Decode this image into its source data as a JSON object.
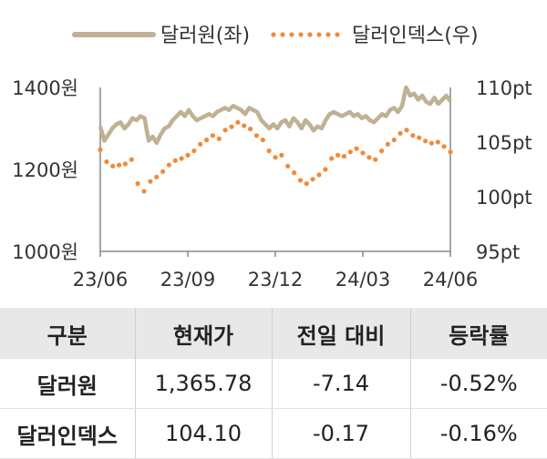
{
  "chart_data": {
    "type": "line",
    "series": [
      {
        "name": "달러원(좌)",
        "axis": "left",
        "color": "#bfb193",
        "style": "solid",
        "values": [
          1305,
          1270,
          1285,
          1300,
          1310,
          1315,
          1300,
          1310,
          1325,
          1320,
          1330,
          1325,
          1270,
          1280,
          1265,
          1285,
          1300,
          1305,
          1320,
          1330,
          1340,
          1330,
          1345,
          1330,
          1320,
          1325,
          1330,
          1335,
          1330,
          1340,
          1345,
          1350,
          1345,
          1355,
          1350,
          1345,
          1335,
          1350,
          1345,
          1340,
          1320,
          1310,
          1300,
          1310,
          1300,
          1315,
          1320,
          1305,
          1325,
          1315,
          1300,
          1320,
          1310,
          1295,
          1305,
          1300,
          1320,
          1335,
          1340,
          1335,
          1330,
          1335,
          1340,
          1330,
          1335,
          1325,
          1330,
          1320,
          1315,
          1325,
          1335,
          1330,
          1345,
          1350,
          1340,
          1355,
          1400,
          1380,
          1385,
          1370,
          1380,
          1365,
          1360,
          1375,
          1360,
          1370,
          1380,
          1366
        ]
      },
      {
        "name": "달러인덱스(우)",
        "axis": "right",
        "color": "#f08a3a",
        "style": "dotted",
        "values": [
          104.3,
          103.2,
          102.8,
          102.9,
          103.0,
          103.4,
          101.2,
          100.5,
          101.4,
          101.8,
          102.3,
          102.9,
          103.3,
          103.5,
          103.8,
          104.2,
          104.8,
          105.2,
          105.6,
          105.3,
          106.1,
          106.4,
          106.8,
          106.5,
          106.2,
          105.6,
          105.2,
          104.2,
          103.6,
          103.8,
          102.8,
          102.2,
          101.5,
          101.2,
          101.6,
          102.0,
          102.5,
          103.5,
          103.8,
          103.7,
          104.1,
          104.4,
          104.0,
          103.6,
          103.4,
          104.2,
          104.8,
          105.2,
          105.8,
          106.1,
          105.6,
          105.4,
          105.1,
          104.9,
          105.0,
          104.6,
          104.1
        ]
      }
    ],
    "x_ticks": [
      "23/06",
      "23/09",
      "23/12",
      "24/03",
      "24/06"
    ],
    "y_left": {
      "ticks": [
        "1000원",
        "1200원",
        "1400원"
      ],
      "ylim": [
        1000,
        1400
      ]
    },
    "y_right": {
      "ticks": [
        "95pt",
        "100pt",
        "105pt",
        "110pt"
      ],
      "ylim": [
        95,
        110
      ]
    },
    "legend_position": "top",
    "grid": false
  },
  "table": {
    "headers": [
      "구분",
      "현재가",
      "전일 대비",
      "등락률"
    ],
    "rows": [
      [
        "달러원",
        "1,365.78",
        "-7.14",
        "-0.52%"
      ],
      [
        "달러인덱스",
        "104.10",
        "-0.17",
        "-0.16%"
      ]
    ]
  }
}
